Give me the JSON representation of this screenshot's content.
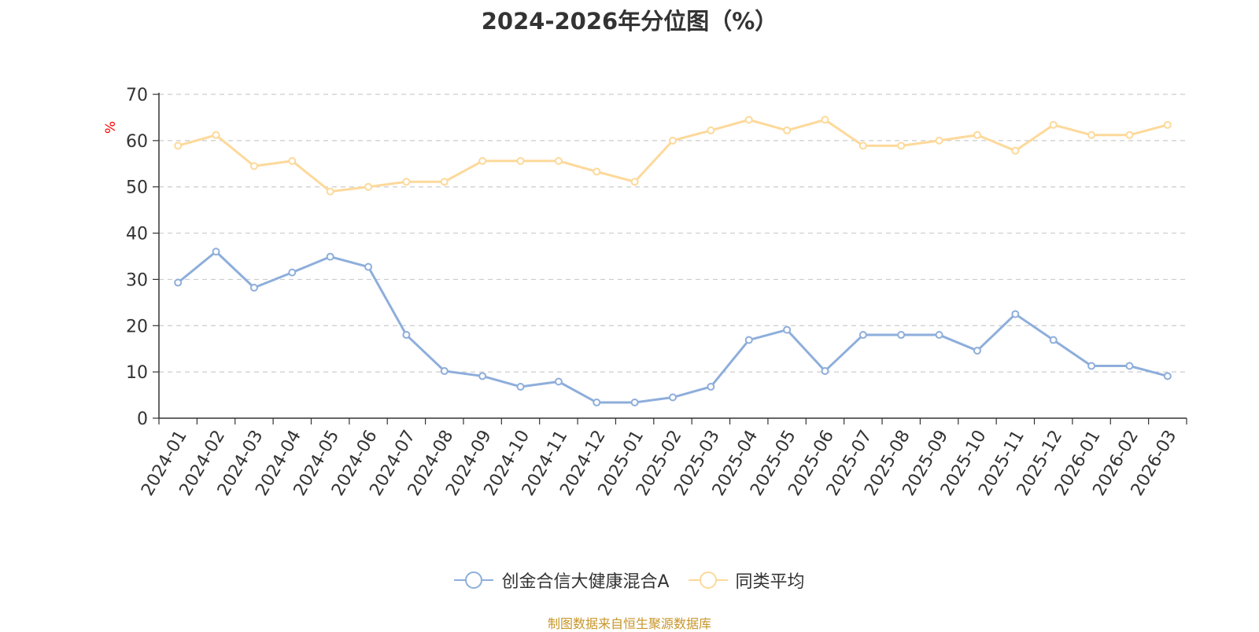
{
  "chart_data": {
    "type": "line",
    "title": "2024-2026年分位图（%）",
    "ylabel": "%",
    "xlabel": "",
    "ylim": [
      0,
      70
    ],
    "yticks": [
      0,
      10,
      20,
      30,
      40,
      50,
      60,
      70
    ],
    "grid": true,
    "legend_position": "bottom-center",
    "categories": [
      "2024-01",
      "2024-02",
      "2024-03",
      "2024-04",
      "2024-05",
      "2024-06",
      "2024-07",
      "2024-08",
      "2024-09",
      "2024-10",
      "2024-11",
      "2024-12",
      "2025-01",
      "2025-02",
      "2025-03",
      "2025-04",
      "2025-05",
      "2025-06",
      "2025-07",
      "2025-08",
      "2025-09",
      "2025-10",
      "2025-11",
      "2025-12",
      "2026-01",
      "2026-02",
      "2026-03"
    ],
    "series": [
      {
        "name": "创金合信大健康混合A",
        "color": "#8eaedb",
        "values": [
          29.3,
          36.0,
          28.2,
          31.5,
          34.9,
          32.7,
          18.0,
          10.2,
          9.1,
          6.8,
          7.9,
          3.4,
          3.4,
          4.5,
          6.8,
          16.9,
          19.1,
          10.2,
          18.0,
          18.0,
          18.0,
          14.6,
          22.5,
          16.9,
          11.3,
          11.3,
          9.1
        ]
      },
      {
        "name": "同类平均",
        "color": "#fdd99a",
        "values": [
          58.9,
          61.2,
          54.5,
          55.6,
          49.0,
          50.0,
          51.1,
          51.1,
          55.6,
          55.6,
          55.6,
          53.3,
          51.1,
          60.0,
          62.2,
          64.5,
          62.2,
          64.5,
          58.9,
          58.9,
          60.0,
          61.2,
          57.8,
          63.4,
          61.2,
          61.2,
          63.4
        ]
      }
    ]
  },
  "axis_color": "#333333",
  "grid_color": "#cccccc",
  "ylabel_color": "#ff0000",
  "source": {
    "text": "制图数据来自恒生聚源数据库",
    "color": "#c8962a"
  }
}
